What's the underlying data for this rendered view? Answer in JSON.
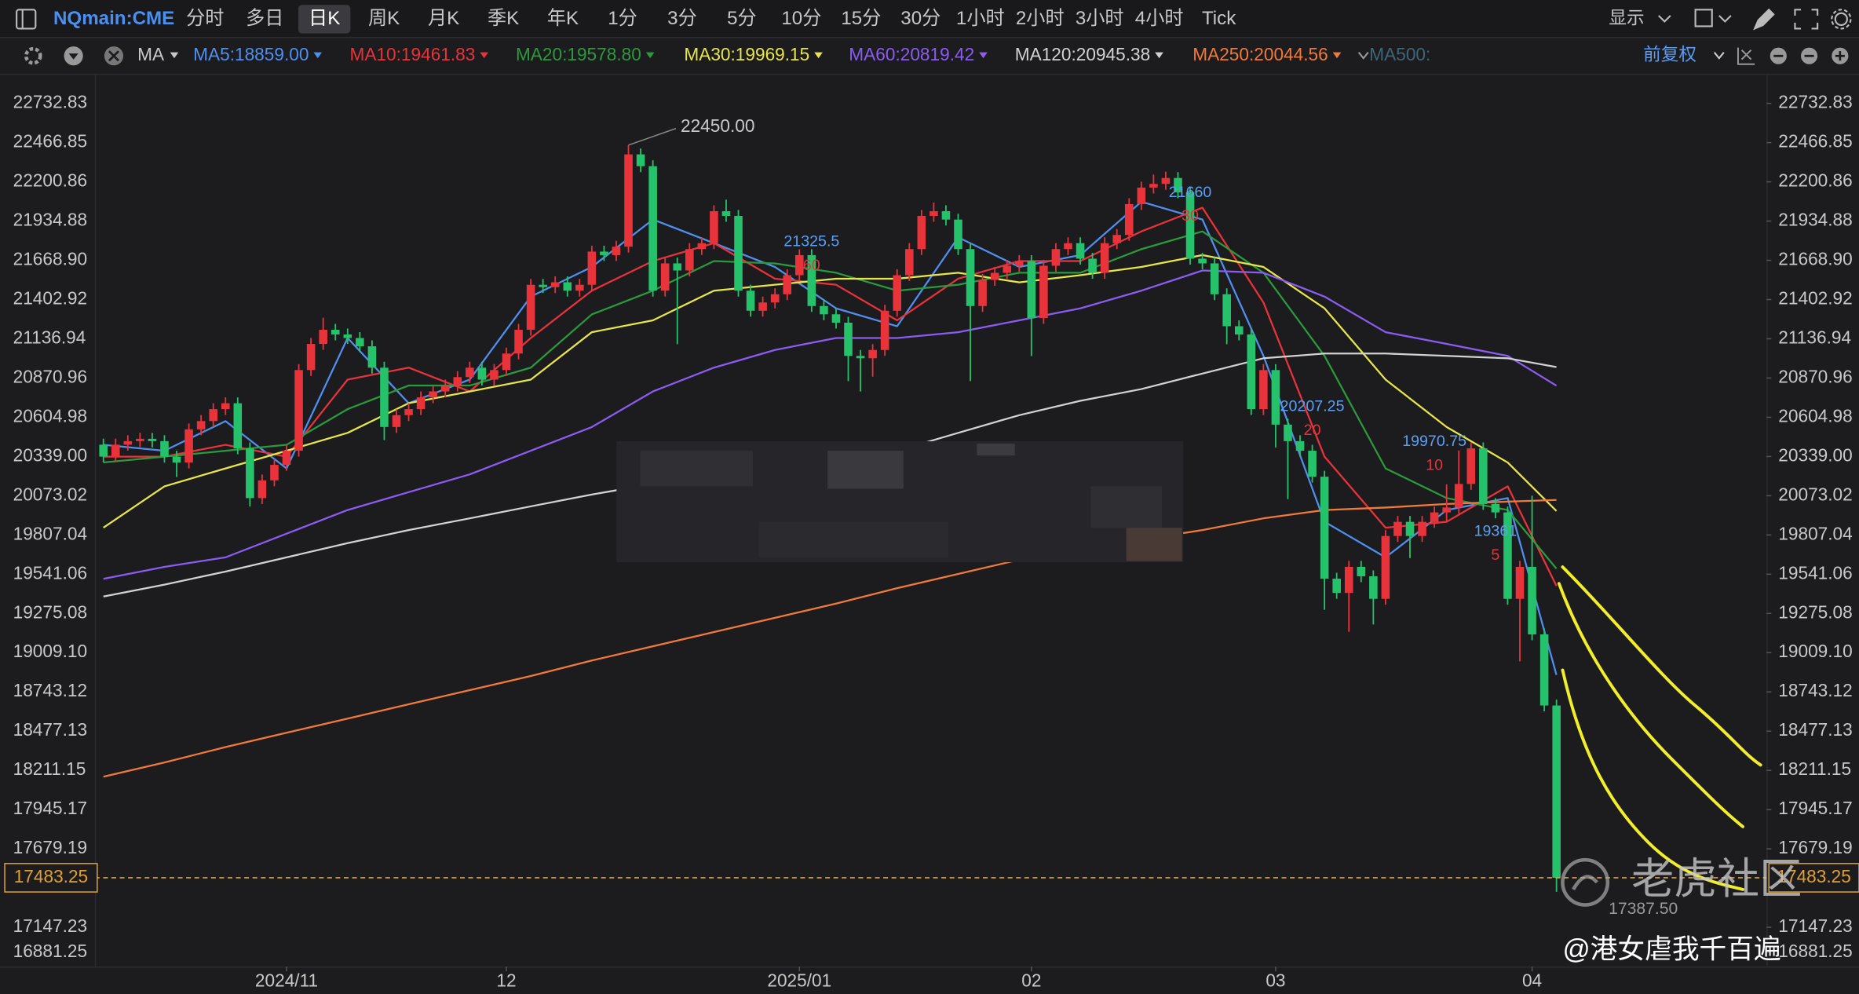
{
  "toolbar": {
    "symbol": "NQmain:CME",
    "periods": [
      "分时",
      "多日",
      "日K",
      "周K",
      "月K",
      "季K",
      "年K",
      "1分",
      "3分",
      "5分",
      "10分",
      "15分",
      "30分",
      "1小时",
      "2小时",
      "3小时",
      "4小时",
      "Tick"
    ],
    "selected": "日K",
    "display": "显示"
  },
  "indicator": {
    "ma": "MA",
    "extra": "MA500:",
    "adjust": "前复权"
  },
  "watermark": {
    "brand": "老虎社区",
    "user": "@港女虐我千百遍"
  },
  "chart_data": {
    "type": "candlestick",
    "up_color": "#e8333b",
    "down_color": "#25c26b",
    "xlim": [
      -0.7,
      136.2
    ],
    "ylim": [
      16881.25,
      22934
    ],
    "yticks": [
      22732.83,
      22466.85,
      22200.86,
      21934.88,
      {
        "value": 21668.9,
        "label": "21668.90"
      },
      21402.92,
      21136.94,
      20870.96,
      20604.98,
      {
        "value": 20339,
        "label": "20339.00"
      },
      20073.02,
      19807.04,
      19541.06,
      19275.08,
      {
        "value": 19009.1,
        "label": "19009.10"
      },
      18743.12,
      18477.13,
      18211.15,
      17945.17,
      17679.19,
      17147.23,
      16881.25
    ],
    "xticks": [
      {
        "value": 15,
        "label": "2024/11"
      },
      {
        "value": 33,
        "label": "12"
      },
      {
        "value": 57,
        "label": "2025/01"
      },
      {
        "value": 76,
        "label": "02"
      },
      {
        "value": 96,
        "label": "03"
      },
      {
        "value": 117,
        "label": "04"
      }
    ],
    "open": [
      20419,
      20338,
      20419,
      20443,
      20459,
      20443,
      20338,
      20298,
      20523,
      20579,
      20660,
      20700,
      20394,
      20057,
      20177,
      20282,
      20378,
      20925,
      21102,
      21198,
      21166,
      21142,
      21086,
      20941,
      20539,
      20619,
      20660,
      20740,
      20780,
      20820,
      20877,
      20941,
      20860,
      20925,
      21037,
      21198,
      21503,
      21487,
      21520,
      21463,
      21503,
      21728,
      21704,
      21761,
      22387,
      22307,
      21463,
      21648,
      21600,
      21745,
      21785,
      22002,
      21970,
      21463,
      21327,
      21383,
      21439,
      21568,
      21704,
      21359,
      21303,
      21246,
      21021,
      21005,
      21061,
      21327,
      21568,
      21745,
      21970,
      22002,
      21945,
      21745,
      21359,
      21536,
      21584,
      21632,
      21664,
      21278,
      21632,
      21745,
      21785,
      21680,
      21584,
      21785,
      21841,
      22050,
      22162,
      22187,
      22227,
      22130,
      21680,
      21648,
      21439,
      21222,
      21166,
      20660,
      20925,
      20555,
      20443,
      20378,
      20202,
      19511,
      19414,
      19591,
      19527,
      19374,
      19800,
      19896,
      19800,
      19896,
      19960,
      19993,
      20153,
      20394,
      20017,
      19960,
      19374,
      19591,
      19133,
      18651
    ],
    "high": [
      20460,
      20460,
      20483,
      20500,
      20499,
      20483,
      20378,
      20563,
      20620,
      20700,
      20740,
      20740,
      20434,
      20217,
      20322,
      20418,
      20965,
      21142,
      21280,
      21238,
      21206,
      21182,
      21126,
      20981,
      20659,
      20700,
      20780,
      20820,
      20860,
      20917,
      20981,
      20981,
      20965,
      21077,
      21238,
      21543,
      21543,
      21560,
      21560,
      21543,
      21768,
      21768,
      21801,
      22450,
      22427,
      22347,
      21688,
      21688,
      21785,
      21825,
      22042,
      22080,
      22010,
      21503,
      21423,
      21479,
      21608,
      21744,
      21744,
      21399,
      21343,
      21286,
      21061,
      21101,
      21367,
      21608,
      21785,
      22010,
      22060,
      22042,
      21985,
      21785,
      21576,
      21624,
      21672,
      21704,
      21704,
      21672,
      21785,
      21825,
      21825,
      21720,
      21825,
      21881,
      22090,
      22202,
      22250,
      22270,
      22267,
      22170,
      21720,
      21688,
      21479,
      21262,
      21206,
      20965,
      20965,
      20595,
      20483,
      20418,
      20242,
      19551,
      19631,
      19631,
      19567,
      19840,
      19936,
      19936,
      19936,
      20000,
      20150,
      20380,
      20434,
      20434,
      20057,
      20000,
      19631,
      20073,
      19173,
      18691
    ],
    "low": [
      20300,
      20300,
      20379,
      20403,
      20400,
      20298,
      20200,
      20258,
      20483,
      20540,
      20620,
      20354,
      20000,
      20017,
      20137,
      20242,
      20338,
      20885,
      21062,
      21126,
      21102,
      21046,
      20901,
      20450,
      20499,
      20579,
      20620,
      20700,
      20740,
      20780,
      20837,
      20820,
      20820,
      20885,
      20997,
      21158,
      21447,
      21447,
      21423,
      21423,
      21463,
      21664,
      21664,
      21721,
      22267,
      21423,
      21423,
      21100,
      21560,
      21705,
      21745,
      21930,
      21423,
      21287,
      21287,
      21343,
      21399,
      21528,
      21319,
      21263,
      21206,
      20850,
      20780,
      20880,
      21021,
      21287,
      21528,
      21705,
      21930,
      21905,
      21705,
      20850,
      21319,
      21496,
      21544,
      21592,
      21020,
      21238,
      21592,
      21705,
      21640,
      21544,
      21544,
      21745,
      21801,
      22010,
      22122,
      22147,
      22090,
      21640,
      21608,
      21399,
      21100,
      21126,
      20620,
      20620,
      20400,
      20050,
      20338,
      20162,
      19300,
      19374,
      19150,
      19487,
      19200,
      19334,
      19760,
      19650,
      19760,
      19856,
      19900,
      19953,
      20113,
      19977,
      19920,
      19334,
      18950,
      19093,
      18611,
      17387.5
    ],
    "close": [
      20338,
      20419,
      20443,
      20459,
      20443,
      20338,
      20298,
      20523,
      20579,
      20660,
      20700,
      20394,
      20057,
      20177,
      20282,
      20378,
      20925,
      21102,
      21198,
      21166,
      21142,
      21086,
      20941,
      20539,
      20619,
      20660,
      20740,
      20780,
      20820,
      20877,
      20941,
      20860,
      20925,
      21037,
      21198,
      21503,
      21487,
      21520,
      21463,
      21503,
      21728,
      21704,
      21761,
      22387,
      22307,
      21463,
      21648,
      21600,
      21745,
      21785,
      22002,
      21970,
      21463,
      21327,
      21383,
      21439,
      21568,
      21704,
      21359,
      21303,
      21246,
      21021,
      21005,
      21061,
      21327,
      21568,
      21745,
      21970,
      22002,
      21945,
      21745,
      21359,
      21536,
      21584,
      21632,
      21664,
      21278,
      21632,
      21745,
      21785,
      21680,
      21584,
      21785,
      21841,
      22050,
      22162,
      22187,
      22227,
      22130,
      21680,
      21648,
      21439,
      21222,
      21166,
      20660,
      20925,
      20555,
      20443,
      20378,
      20202,
      19511,
      19414,
      19591,
      19527,
      19374,
      19800,
      19896,
      19800,
      19896,
      19960,
      19993,
      20153,
      20394,
      20017,
      19960,
      19374,
      19591,
      19133,
      18651,
      17483.25
    ],
    "max_label": "22450.00",
    "min_label": "17387.50",
    "ma_x": [
      0,
      5,
      10,
      15,
      20,
      25,
      30,
      35,
      40,
      45,
      50,
      55,
      60,
      65,
      70,
      75,
      80,
      85,
      90,
      95,
      100,
      105,
      110,
      115,
      119
    ],
    "series": [
      {
        "name": "MA5:18859.00",
        "color": "#4f8ff0",
        "values": [
          20418,
          20378,
          20579,
          20258,
          21142,
          20700,
          20860,
          21423,
          21624,
          21945,
          21785,
          21624,
          21343,
          21222,
          21825,
          21624,
          21704,
          22066,
          21945,
          21021,
          19896,
          19655,
          19976,
          20057,
          18859
        ]
      },
      {
        "name": "MA10:19461.83",
        "color": "#e8333b",
        "values": [
          20338,
          20338,
          20418,
          20338,
          20860,
          20941,
          20780,
          21142,
          21463,
          21664,
          21785,
          21544,
          21503,
          21262,
          21544,
          21664,
          21664,
          21865,
          22026,
          21383,
          20338,
          19856,
          19896,
          20137,
          19461.83
        ]
      },
      {
        "name": "MA20:19578.80",
        "color": "#2b9a3c",
        "values": [
          20298,
          20338,
          20378,
          20418,
          20660,
          20820,
          20820,
          20941,
          21302,
          21463,
          21664,
          21648,
          21584,
          21463,
          21503,
          21584,
          21584,
          21744,
          21865,
          21584,
          21021,
          20258,
          20057,
          19976,
          19578.8
        ]
      },
      {
        "name": "MA30:19969.15",
        "color": "#e6e64a",
        "values": [
          19856,
          20137,
          20258,
          20378,
          20499,
          20700,
          20780,
          20860,
          21182,
          21262,
          21463,
          21503,
          21544,
          21544,
          21584,
          21519,
          21568,
          21624,
          21704,
          21624,
          21343,
          20860,
          20539,
          20298,
          19969.15
        ]
      },
      {
        "name": "MA60:20819.42",
        "color": "#8a5cf0",
        "values": [
          19510,
          19591,
          19655,
          19816,
          19976,
          20097,
          20218,
          20378,
          20539,
          20780,
          20941,
          21061,
          21142,
          21142,
          21182,
          21262,
          21343,
          21463,
          21600,
          21584,
          21423,
          21182,
          21102,
          21021,
          20819.42
        ]
      },
      {
        "name": "MA120:20945.38",
        "color": "#d2d2d2",
        "values": [
          19390,
          19470,
          19559,
          19655,
          19752,
          19840,
          19920,
          20001,
          20081,
          20153,
          20218,
          20282,
          20338,
          20378,
          20499,
          20619,
          20716,
          20796,
          20901,
          21005,
          21037,
          21037,
          21021,
          21005,
          20945.38
        ]
      },
      {
        "name": "MA250:20044.56",
        "color": "#f07a3a",
        "values": [
          18168,
          18265,
          18369,
          18466,
          18562,
          18659,
          18755,
          18851,
          18956,
          19052,
          19149,
          19245,
          19342,
          19446,
          19543,
          19639,
          19719,
          19776,
          19840,
          19920,
          19976,
          19993,
          20017,
          20033,
          20044.56
        ]
      }
    ],
    "annotations": [
      {
        "x": 58,
        "value": 21325.5,
        "tag": 60
      },
      {
        "x": 89,
        "value": 21660,
        "tag": 30
      },
      {
        "x": 99,
        "value": 20207.25,
        "tag": 20
      },
      {
        "x": 109,
        "value": 19970.75,
        "tag": 10
      },
      {
        "x": 114,
        "value": 19361,
        "tag": 5
      }
    ]
  }
}
